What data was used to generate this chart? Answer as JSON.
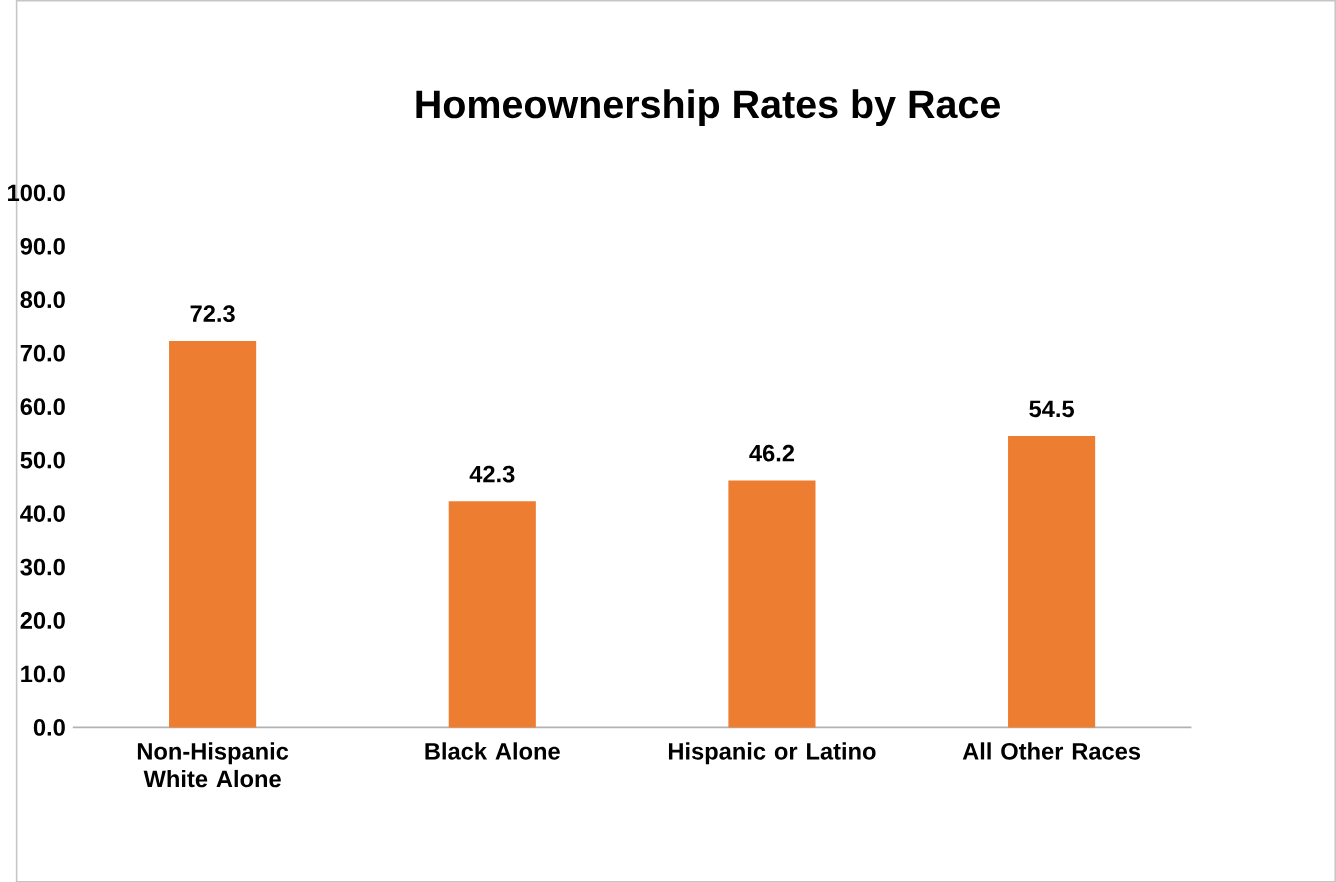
{
  "chart_data": {
    "type": "bar",
    "title": "Homeownership Rates by Race",
    "categories": [
      "Non-Hispanic White Alone",
      "Black Alone",
      "Hispanic or Latino",
      "All Other Races"
    ],
    "values": [
      72.3,
      42.3,
      46.2,
      54.5
    ],
    "color": "#ed7d31",
    "data_labels": true,
    "ylim": [
      0,
      100
    ],
    "yticks": [
      {
        "value": 0,
        "label": "0.0"
      },
      {
        "value": 10,
        "label": "10.0"
      },
      {
        "value": 20,
        "label": "20.0"
      },
      {
        "value": 30,
        "label": "30.0"
      },
      {
        "value": 40,
        "label": "40.0"
      },
      {
        "value": 50,
        "label": "50.0"
      },
      {
        "value": 60,
        "label": "60.0"
      },
      {
        "value": 70,
        "label": "70.0"
      },
      {
        "value": 80,
        "label": "80.0"
      },
      {
        "value": 90,
        "label": "90.0"
      },
      {
        "value": 100,
        "label": "100.0"
      }
    ]
  }
}
